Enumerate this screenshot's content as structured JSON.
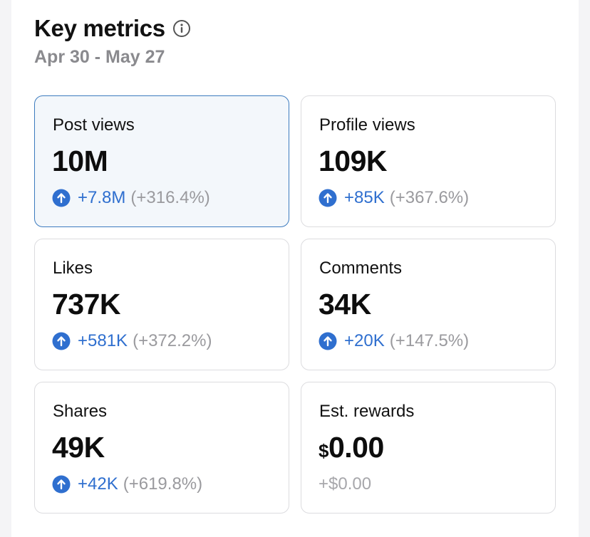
{
  "header": {
    "title": "Key metrics",
    "info_icon": "info-icon",
    "date_range": "Apr 30 - May 27"
  },
  "colors": {
    "accent": "#2f6fcf",
    "selected_border": "#3c7bbf",
    "selected_bg": "#f3f7fb",
    "muted_text": "#9a9a9e"
  },
  "metrics": [
    {
      "label": "Post views",
      "value": "10M",
      "delta": "+7.8M",
      "percent": "(+316.4%)",
      "trend_icon": "arrow-up-circle-icon",
      "selected": true
    },
    {
      "label": "Profile views",
      "value": "109K",
      "delta": "+85K",
      "percent": "(+367.6%)",
      "trend_icon": "arrow-up-circle-icon",
      "selected": false
    },
    {
      "label": "Likes",
      "value": "737K",
      "delta": "+581K",
      "percent": "(+372.2%)",
      "trend_icon": "arrow-up-circle-icon",
      "selected": false
    },
    {
      "label": "Comments",
      "value": "34K",
      "delta": "+20K",
      "percent": "(+147.5%)",
      "trend_icon": "arrow-up-circle-icon",
      "selected": false
    },
    {
      "label": "Shares",
      "value": "49K",
      "delta": "+42K",
      "percent": "(+619.8%)",
      "trend_icon": "arrow-up-circle-icon",
      "selected": false
    },
    {
      "label": "Est. rewards",
      "currency": "$",
      "value": "0.00",
      "change": "+$0.00",
      "selected": false
    }
  ]
}
